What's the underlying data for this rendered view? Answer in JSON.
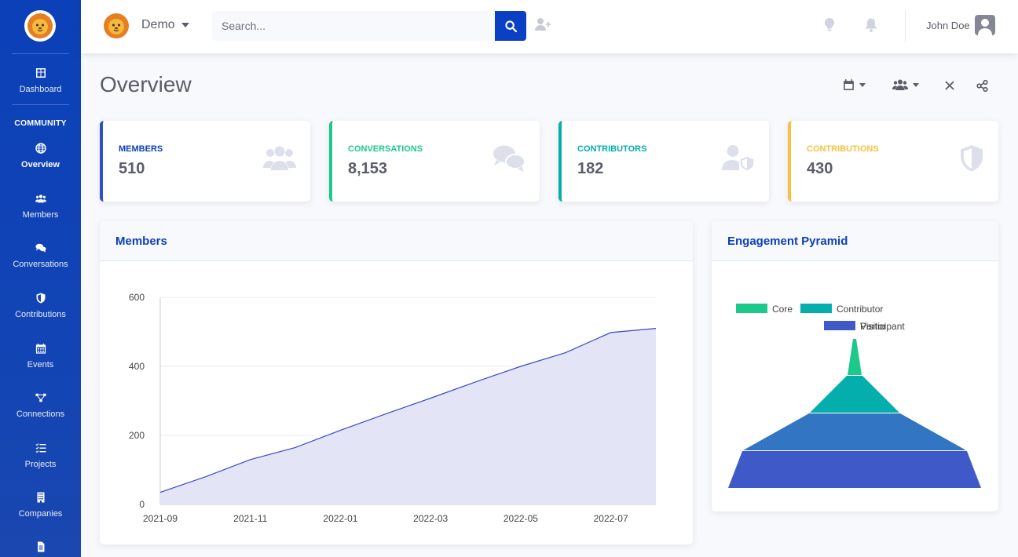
{
  "app": {
    "project_name": "Demo",
    "search_placeholder": "Search...",
    "user_name": "John Doe"
  },
  "sidebar": {
    "section_heading": "COMMUNITY",
    "items": [
      {
        "label": "Dashboard",
        "icon": "dashboard-icon"
      },
      {
        "label": "Overview",
        "icon": "globe-icon",
        "active": true
      },
      {
        "label": "Members",
        "icon": "users-icon"
      },
      {
        "label": "Conversations",
        "icon": "comments-icon"
      },
      {
        "label": "Contributions",
        "icon": "shield-icon"
      },
      {
        "label": "Events",
        "icon": "calendar-icon"
      },
      {
        "label": "Connections",
        "icon": "connections-icon"
      },
      {
        "label": "Projects",
        "icon": "tasks-icon"
      },
      {
        "label": "Companies",
        "icon": "building-icon"
      }
    ]
  },
  "page": {
    "title": "Overview"
  },
  "stats": [
    {
      "label": "MEMBERS",
      "value": "510",
      "color": "#0b40b8",
      "icon": "users-icon"
    },
    {
      "label": "CONVERSATIONS",
      "value": "8,153",
      "color": "#1cc88a",
      "icon": "comments-icon"
    },
    {
      "label": "CONTRIBUTORS",
      "value": "182",
      "color": "#04aead",
      "icon": "user-shield-icon"
    },
    {
      "label": "CONTRIBUTIONS",
      "value": "430",
      "color": "#f6c23e",
      "icon": "shield-icon"
    }
  ],
  "panels": {
    "members_title": "Members",
    "pyramid_title": "Engagement Pyramid"
  },
  "chart_data": [
    {
      "type": "area",
      "x": [
        "2021-09",
        "2021-10",
        "2021-11",
        "2021-12",
        "2022-01",
        "2022-02",
        "2022-03",
        "2022-04",
        "2022-05",
        "2022-06",
        "2022-07",
        "2022-08"
      ],
      "xticks": [
        "2021-09",
        "2021-11",
        "2022-01",
        "2022-03",
        "2022-05",
        "2022-07"
      ],
      "values": [
        35,
        80,
        130,
        165,
        215,
        262,
        308,
        355,
        400,
        440,
        498,
        510
      ],
      "ylim": [
        0,
        600
      ],
      "yticks": [
        0,
        200,
        400,
        600
      ],
      "grid": true,
      "color": "#3a49c4",
      "fill": "#e3e5f7"
    },
    {
      "type": "funnel",
      "legend": [
        "Core",
        "Contributor",
        "Participant",
        "Visitor"
      ],
      "legend_placement": "top",
      "colors": [
        "#1cc88a",
        "#04aead",
        "#3275c3",
        "#3f5ac8"
      ]
    }
  ]
}
